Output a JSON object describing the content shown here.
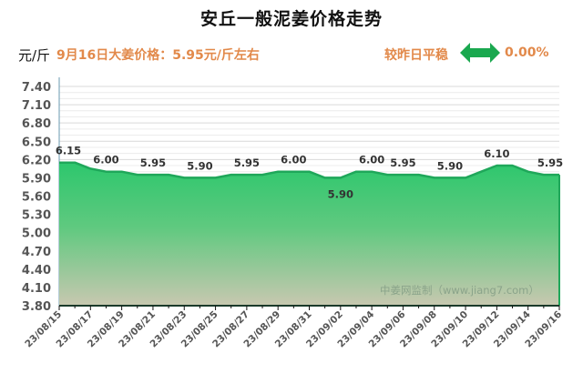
{
  "header": {
    "title": "安丘一般泥姜价格走势",
    "unit": "元/斤",
    "price_text": "9月16日大姜价格：5.95元/斤左右",
    "compare_text": "较昨日平稳",
    "compare_icon": "left-right-arrow-icon",
    "change_pct": "0.00%"
  },
  "colors": {
    "accent_orange": "#e2894a",
    "area_top": "#2dc76d",
    "area_bottom": "#c9c9b0",
    "line": "#1fa75a",
    "arrow_green": "#1aa84f"
  },
  "watermark": "中姜网监制（www.jiang7.com）",
  "chart_data": {
    "type": "area",
    "title": "安丘一般泥姜价格走势",
    "xlabel": "",
    "ylabel": "元/斤",
    "ylim": [
      3.8,
      7.4
    ],
    "yticks": [
      "7.40",
      "7.10",
      "6.80",
      "6.50",
      "6.20",
      "5.90",
      "5.60",
      "5.30",
      "5.00",
      "4.70",
      "4.40",
      "4.10",
      "3.80"
    ],
    "grid": true,
    "legend": "none",
    "x": [
      "23/08/15",
      "23/08/16",
      "23/08/17",
      "23/08/18",
      "23/08/19",
      "23/08/20",
      "23/08/21",
      "23/08/22",
      "23/08/23",
      "23/08/24",
      "23/08/25",
      "23/08/26",
      "23/08/27",
      "23/08/28",
      "23/08/29",
      "23/08/30",
      "23/08/31",
      "23/09/01",
      "23/09/02",
      "23/09/03",
      "23/09/04",
      "23/09/05",
      "23/09/06",
      "23/09/07",
      "23/09/08",
      "23/09/09",
      "23/09/10",
      "23/09/11",
      "23/09/12",
      "23/09/13",
      "23/09/14",
      "23/09/15",
      "23/09/16"
    ],
    "xtick_labels": [
      "23/08/15",
      "23/08/17",
      "23/08/19",
      "23/08/21",
      "23/08/23",
      "23/08/25",
      "23/08/27",
      "23/08/29",
      "23/08/31",
      "23/09/02",
      "23/09/04",
      "23/09/06",
      "23/09/08",
      "23/09/10",
      "23/09/12",
      "23/09/14",
      "23/09/16"
    ],
    "series": [
      {
        "name": "安丘一般泥姜",
        "values": [
          6.15,
          6.15,
          6.05,
          6.0,
          6.0,
          5.95,
          5.95,
          5.95,
          5.9,
          5.9,
          5.9,
          5.95,
          5.95,
          5.95,
          6.0,
          6.0,
          6.0,
          5.9,
          5.9,
          6.0,
          6.0,
          5.95,
          5.95,
          5.95,
          5.9,
          5.9,
          5.9,
          6.0,
          6.1,
          6.1,
          6.0,
          5.95,
          5.95
        ]
      }
    ],
    "annotations": [
      {
        "x": "23/08/15",
        "label": "6.15"
      },
      {
        "x": "23/08/18",
        "label": "6.00"
      },
      {
        "x": "23/08/21",
        "label": "5.95"
      },
      {
        "x": "23/08/24",
        "label": "5.90"
      },
      {
        "x": "23/08/27",
        "label": "5.95"
      },
      {
        "x": "23/08/30",
        "label": "6.00"
      },
      {
        "x": "23/09/02",
        "label": "5.90",
        "below": true
      },
      {
        "x": "23/09/04",
        "label": "6.00"
      },
      {
        "x": "23/09/06",
        "label": "5.95"
      },
      {
        "x": "23/09/09",
        "label": "5.90"
      },
      {
        "x": "23/09/12",
        "label": "6.10"
      },
      {
        "x": "23/09/16",
        "label": "5.95"
      }
    ]
  }
}
